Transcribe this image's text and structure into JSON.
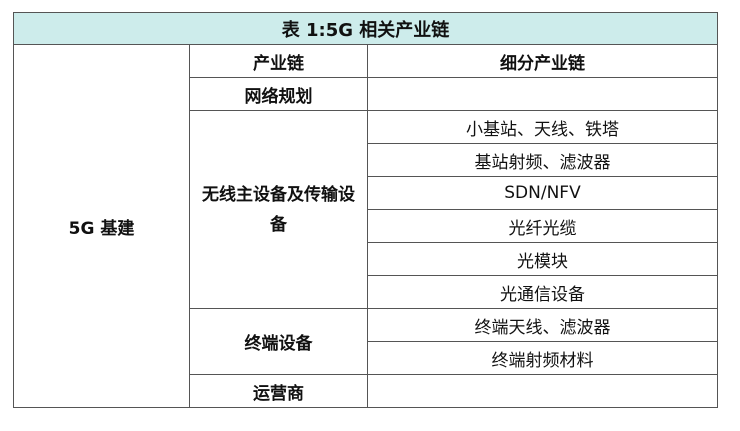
{
  "title": "表 1:5G 相关产业链",
  "headers": {
    "chain": "产业链",
    "sub_chain": "细分产业链"
  },
  "category": "5G 基建",
  "rows": [
    {
      "chain": "网络规划",
      "sub": [
        ""
      ]
    },
    {
      "chain": "无线主设备及传输设备",
      "sub": [
        "小基站、天线、铁塔",
        "基站射频、滤波器",
        "SDN/NFV",
        "光纤光缆",
        "光模块",
        "光通信设备"
      ]
    },
    {
      "chain": "终端设备",
      "sub": [
        "终端天线、滤波器",
        "终端射频材料"
      ]
    },
    {
      "chain": "运营商",
      "sub": [
        ""
      ]
    }
  ],
  "colors": {
    "title_bg": "#cdeceb",
    "border": "#555555"
  }
}
